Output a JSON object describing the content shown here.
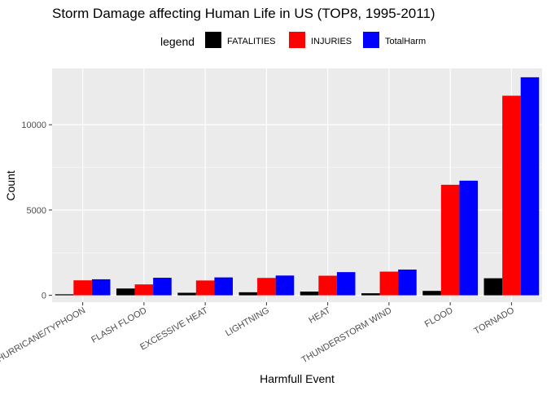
{
  "chart_data": {
    "type": "bar",
    "title": "Storm Damage affecting Human Life in US (TOP8, 1995-2011)",
    "xlabel": "Harmfull Event",
    "ylabel": "Count",
    "legend_title": "legend",
    "legend_position": "top",
    "grid": true,
    "ylim": [
      -400,
      13300
    ],
    "yticks": [
      0,
      5000,
      10000
    ],
    "ytick_labels": [
      "0",
      "5000",
      "10000"
    ],
    "categories": [
      "HURRICANE/TYPHOON",
      "FLASH FLOOD",
      "EXCESSIVE HEAT",
      "LIGHTNING",
      "HEAT",
      "THUNDERSTORM WIND",
      "FLOOD",
      "TORNADO"
    ],
    "series": [
      {
        "name": "FATALITIES",
        "color": "#000000",
        "values": [
          60,
          400,
          150,
          180,
          220,
          120,
          260,
          1000
        ]
      },
      {
        "name": "INJURIES",
        "color": "#ff0000",
        "values": [
          880,
          640,
          870,
          1020,
          1150,
          1390,
          6480,
          11700
        ]
      },
      {
        "name": "TotalHarm",
        "color": "#0000ff",
        "values": [
          940,
          1030,
          1050,
          1160,
          1360,
          1510,
          6720,
          12780
        ]
      }
    ]
  }
}
